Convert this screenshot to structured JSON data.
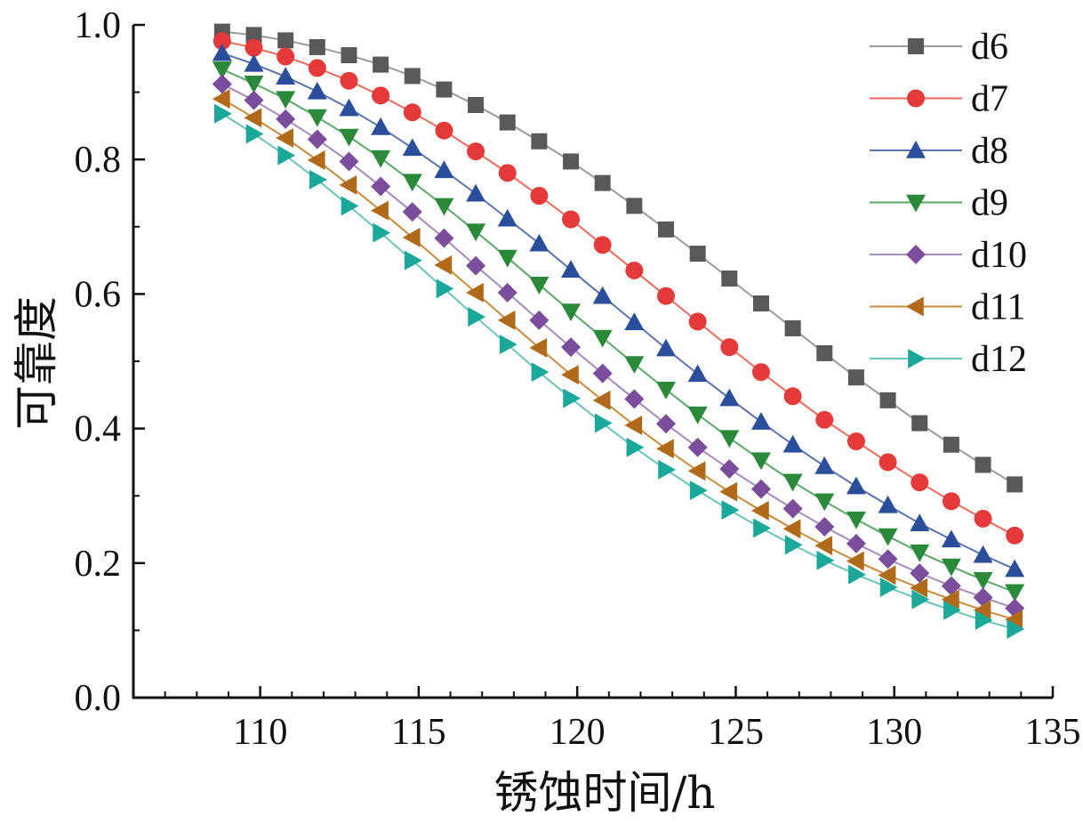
{
  "chart_data": {
    "type": "line",
    "xlabel": "锈蚀时间/h",
    "ylabel": "可靠度",
    "xlim": [
      106,
      135
    ],
    "ylim": [
      0,
      1.0
    ],
    "x_ticks": [
      110,
      115,
      120,
      125,
      130,
      135
    ],
    "x_tick_labels": [
      "110",
      "115",
      "120",
      "125",
      "130",
      "135"
    ],
    "y_ticks": [
      0,
      0.2,
      0.4,
      0.6,
      0.8,
      1.0
    ],
    "y_tick_labels": [
      "0.0",
      "0.2",
      "0.4",
      "0.6",
      "0.8",
      "1.0"
    ],
    "grid": false,
    "legend_position": "top-right",
    "x": [
      108.8,
      109.8,
      110.8,
      111.8,
      112.8,
      113.8,
      114.8,
      115.8,
      116.8,
      117.8,
      118.8,
      119.8,
      120.8,
      121.8,
      122.8,
      123.8,
      124.8,
      125.8,
      126.8,
      127.8,
      128.8,
      129.8,
      130.8,
      131.8,
      132.8,
      133.8
    ],
    "series": [
      {
        "name": "d6",
        "marker": "square",
        "color": "#595959",
        "line_color": "#9a9a9a",
        "values": [
          0.99,
          0.985,
          0.977,
          0.967,
          0.955,
          0.941,
          0.924,
          0.904,
          0.881,
          0.855,
          0.827,
          0.797,
          0.765,
          0.731,
          0.696,
          0.66,
          0.623,
          0.586,
          0.549,
          0.512,
          0.476,
          0.442,
          0.408,
          0.376,
          0.346,
          0.317
        ]
      },
      {
        "name": "d7",
        "marker": "circle",
        "color": "#e53a3a",
        "line_color": "#e96a5a",
        "values": [
          0.976,
          0.966,
          0.953,
          0.936,
          0.917,
          0.895,
          0.87,
          0.843,
          0.812,
          0.78,
          0.746,
          0.711,
          0.673,
          0.635,
          0.597,
          0.559,
          0.521,
          0.484,
          0.448,
          0.413,
          0.381,
          0.35,
          0.32,
          0.292,
          0.266,
          0.241
        ]
      },
      {
        "name": "d8",
        "marker": "triangle-up",
        "color": "#2b4e9c",
        "line_color": "#5b72b0",
        "values": [
          0.958,
          0.942,
          0.923,
          0.901,
          0.876,
          0.848,
          0.817,
          0.784,
          0.749,
          0.712,
          0.675,
          0.636,
          0.597,
          0.558,
          0.519,
          0.481,
          0.445,
          0.41,
          0.376,
          0.344,
          0.314,
          0.286,
          0.259,
          0.235,
          0.212,
          0.191
        ]
      },
      {
        "name": "d9",
        "marker": "triangle-down",
        "color": "#2a8a3a",
        "line_color": "#5aa86a",
        "values": [
          0.934,
          0.913,
          0.89,
          0.863,
          0.834,
          0.802,
          0.767,
          0.731,
          0.693,
          0.654,
          0.614,
          0.574,
          0.535,
          0.496,
          0.458,
          0.421,
          0.386,
          0.353,
          0.321,
          0.292,
          0.265,
          0.24,
          0.216,
          0.195,
          0.175,
          0.157
        ]
      },
      {
        "name": "d10",
        "marker": "diamond",
        "color": "#7a4e9c",
        "line_color": "#a58abb",
        "values": [
          0.912,
          0.888,
          0.86,
          0.83,
          0.797,
          0.76,
          0.722,
          0.683,
          0.642,
          0.602,
          0.561,
          0.521,
          0.482,
          0.444,
          0.407,
          0.372,
          0.34,
          0.31,
          0.281,
          0.254,
          0.229,
          0.206,
          0.185,
          0.166,
          0.149,
          0.133
        ]
      },
      {
        "name": "d11",
        "marker": "triangle-left",
        "color": "#b06a1a",
        "line_color": "#c98a3a",
        "values": [
          0.89,
          0.862,
          0.832,
          0.799,
          0.762,
          0.724,
          0.684,
          0.643,
          0.602,
          0.561,
          0.52,
          0.48,
          0.442,
          0.405,
          0.37,
          0.337,
          0.306,
          0.278,
          0.251,
          0.226,
          0.203,
          0.182,
          0.163,
          0.146,
          0.13,
          0.116
        ]
      },
      {
        "name": "d12",
        "marker": "triangle-right",
        "color": "#1aa89a",
        "line_color": "#6ac4b8",
        "values": [
          0.868,
          0.838,
          0.806,
          0.77,
          0.731,
          0.691,
          0.65,
          0.608,
          0.566,
          0.525,
          0.484,
          0.445,
          0.408,
          0.372,
          0.339,
          0.308,
          0.279,
          0.252,
          0.227,
          0.204,
          0.183,
          0.164,
          0.146,
          0.13,
          0.115,
          0.102
        ]
      }
    ]
  }
}
